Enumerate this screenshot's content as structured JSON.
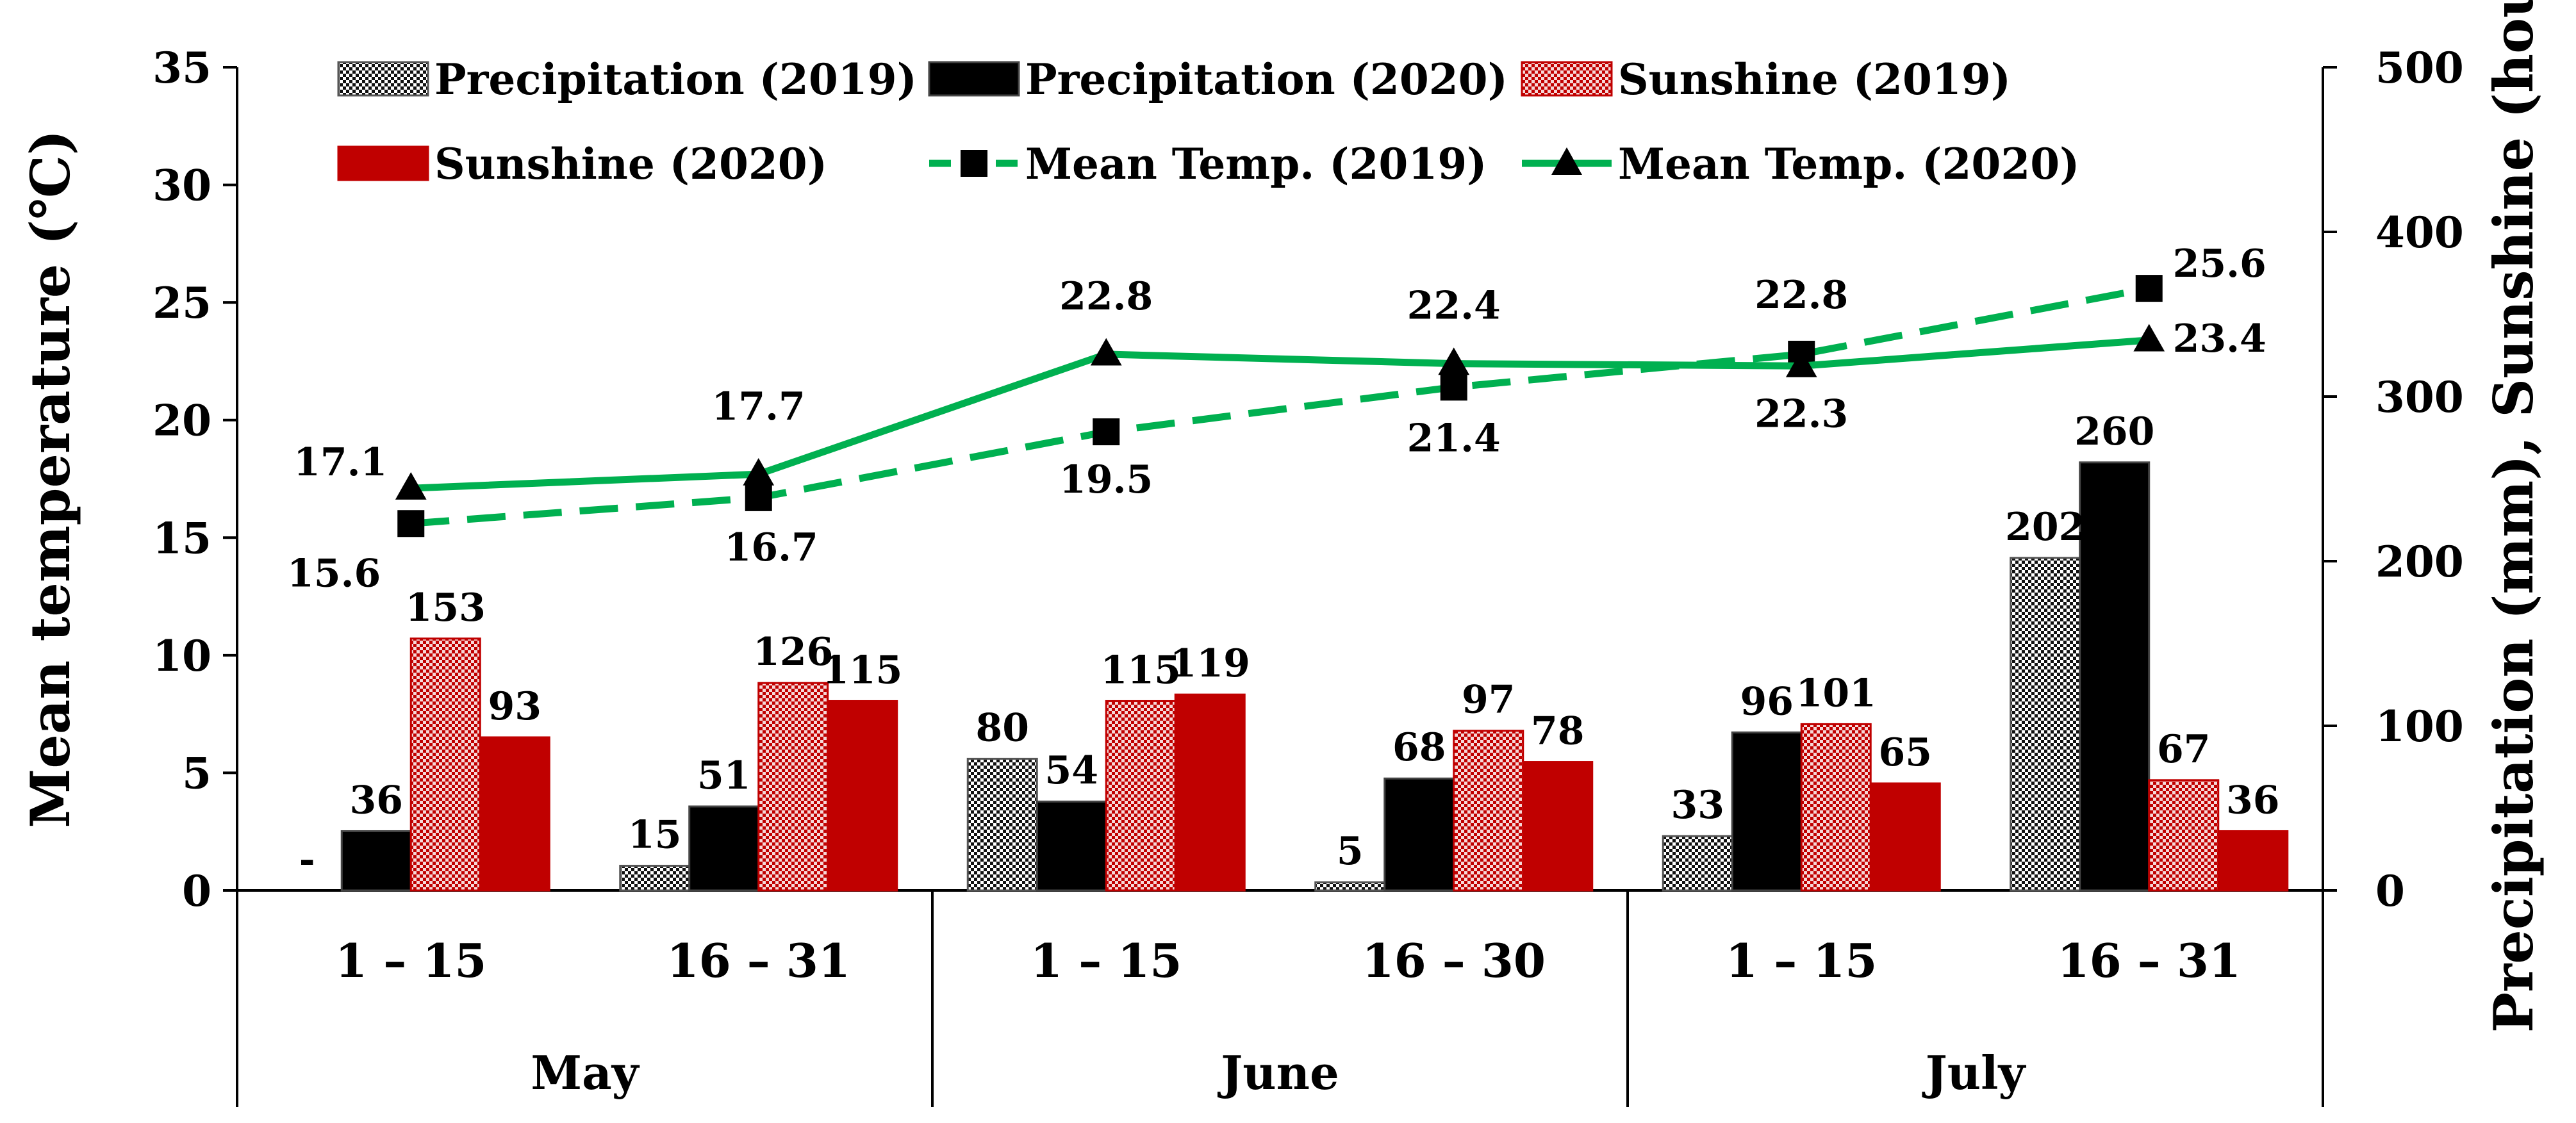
{
  "chart_data": {
    "type": "bar+line",
    "title": "",
    "categories": [
      "1 – 15",
      "16 – 31",
      "1 – 15",
      "16 – 30",
      "1 – 15",
      "16 – 31"
    ],
    "groups": [
      "May",
      "June",
      "July"
    ],
    "left_axis": {
      "label": "Mean temperature (℃)",
      "min": 0,
      "max": 35,
      "ticks": [
        0,
        5,
        10,
        15,
        20,
        25,
        30,
        35
      ]
    },
    "right_axis": {
      "label": "Precipitation (mm), Sunshine (hour)",
      "min": 0,
      "max": 500,
      "ticks": [
        0,
        100,
        200,
        300,
        400,
        500
      ]
    },
    "bar_series": [
      {
        "name": "Precipitation (2019)",
        "axis": "right",
        "pattern": "checker-black",
        "values": [
          0,
          15,
          80,
          5,
          33,
          202
        ],
        "labels": [
          "-",
          "15",
          "80",
          "5",
          "33",
          "202"
        ]
      },
      {
        "name": "Precipitation (2020)",
        "axis": "right",
        "pattern": "solid-black",
        "values": [
          36,
          51,
          54,
          68,
          96,
          260
        ],
        "labels": [
          "36",
          "51",
          "54",
          "68",
          "96",
          "260"
        ]
      },
      {
        "name": "Sunshine (2019)",
        "axis": "right",
        "pattern": "checker-red",
        "values": [
          153,
          126,
          115,
          97,
          101,
          67
        ],
        "labels": [
          "153",
          "126",
          "115",
          "97",
          "101",
          "67"
        ]
      },
      {
        "name": "Sunshine (2020)",
        "axis": "right",
        "pattern": "solid-red",
        "values": [
          93,
          115,
          119,
          78,
          65,
          36
        ],
        "labels": [
          "93",
          "115",
          "119",
          "78",
          "65",
          "36"
        ]
      }
    ],
    "line_series": [
      {
        "name": "Mean Temp. (2019)",
        "axis": "left",
        "marker": "square",
        "dash": true,
        "values": [
          15.6,
          16.7,
          19.5,
          21.4,
          22.8,
          25.6
        ],
        "labels": [
          "15.6",
          "16.7",
          "19.5",
          "21.4",
          "22.8",
          "25.6"
        ]
      },
      {
        "name": "Mean Temp. (2020)",
        "axis": "left",
        "marker": "triangle",
        "dash": false,
        "values": [
          17.1,
          17.7,
          22.8,
          22.4,
          22.3,
          23.4
        ],
        "labels": [
          "17.1",
          "17.7",
          "22.8",
          "22.4",
          "22.3",
          "23.4"
        ]
      }
    ],
    "legend": {
      "placement": "top",
      "entries": [
        "Precipitation (2019)",
        "Precipitation (2020)",
        "Sunshine (2019)",
        "Sunshine (2020)",
        "Mean Temp. (2019)",
        "Mean Temp. (2020)"
      ]
    },
    "colors": {
      "black": "#000000",
      "red": "#c00000",
      "green": "#00b050",
      "checker_bg": "#ffffff",
      "checker_red_bg": "#f6d8d8"
    }
  }
}
